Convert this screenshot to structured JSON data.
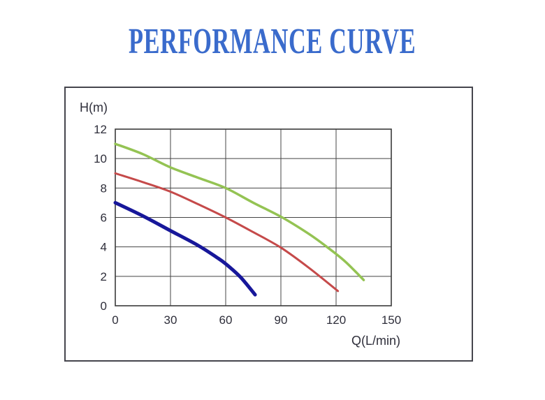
{
  "page": {
    "title": "PERFORMANCE CURVE",
    "title_color": "#3A6BCC"
  },
  "chart_data": {
    "type": "line",
    "title": "PERFORMANCE CURVE",
    "xlabel": "Q(L/min)",
    "ylabel": "H(m)",
    "xlim": [
      0,
      150
    ],
    "ylim": [
      0,
      12
    ],
    "x_ticks": [
      0,
      30,
      60,
      90,
      120,
      150
    ],
    "y_ticks": [
      0,
      2,
      4,
      6,
      8,
      10,
      12
    ],
    "grid": true,
    "legend_position": "none",
    "grid_color": "#454545",
    "tick_color": "#2e2e3a",
    "series": [
      {
        "name": "green-curve",
        "color": "#94C353",
        "stroke_width": 3.5,
        "points": [
          [
            0,
            11
          ],
          [
            15,
            10.3
          ],
          [
            30,
            9.4
          ],
          [
            45,
            8.7
          ],
          [
            60,
            8.0
          ],
          [
            75,
            7.0
          ],
          [
            90,
            6.05
          ],
          [
            105,
            4.9
          ],
          [
            115,
            4.0
          ],
          [
            125,
            3.0
          ],
          [
            135,
            1.75
          ]
        ]
      },
      {
        "name": "red-curve",
        "color": "#C54A4A",
        "stroke_width": 3,
        "points": [
          [
            0,
            9
          ],
          [
            15,
            8.4
          ],
          [
            30,
            7.75
          ],
          [
            45,
            6.9
          ],
          [
            60,
            6.0
          ],
          [
            75,
            5.0
          ],
          [
            90,
            3.95
          ],
          [
            105,
            2.6
          ],
          [
            121,
            1.0
          ]
        ]
      },
      {
        "name": "blue-curve",
        "color": "#17179A",
        "stroke_width": 5,
        "points": [
          [
            0,
            7
          ],
          [
            15,
            6.1
          ],
          [
            30,
            5.1
          ],
          [
            45,
            4.1
          ],
          [
            55,
            3.3
          ],
          [
            60,
            2.85
          ],
          [
            68,
            1.95
          ],
          [
            76,
            0.75
          ]
        ]
      }
    ]
  }
}
